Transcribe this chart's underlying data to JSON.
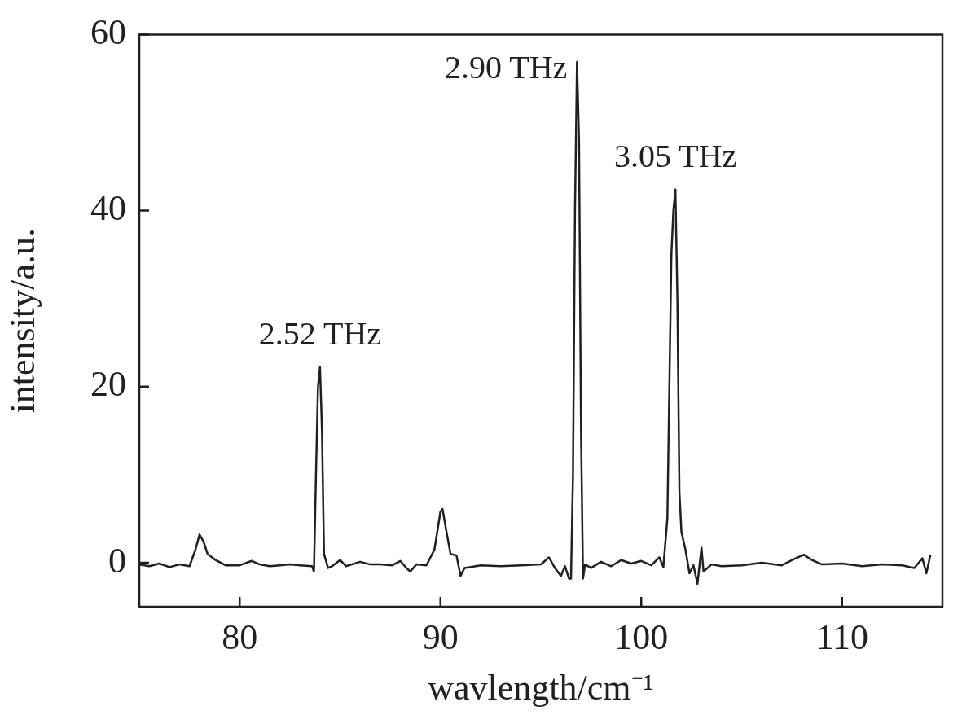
{
  "chart_data": {
    "type": "line",
    "xlabel": "wavlength/cm⁻¹",
    "ylabel": "intensity/a.u.",
    "xlim": [
      75,
      115
    ],
    "xticks": [
      80,
      90,
      100,
      110
    ],
    "ylim": [
      -5,
      60
    ],
    "yticks": [
      0,
      20,
      40,
      60
    ],
    "grid": false,
    "legend": false,
    "marker": "none",
    "line_style": "solid",
    "annotations": [
      {
        "text": "2.52 THz",
        "x": 84.0,
        "y": 22.2
      },
      {
        "text": "2.90 THz",
        "x": 96.8,
        "y": 56.9
      },
      {
        "text": "3.05 THz",
        "x": 101.7,
        "y": 42.4
      }
    ],
    "series": [
      {
        "color": "#231f20",
        "x": [
          75,
          75.5,
          76,
          76.5,
          77,
          77.5,
          77.8,
          78.0,
          78.2,
          78.4,
          78.8,
          79.3,
          80,
          80.6,
          81,
          81.5,
          82,
          82.5,
          83,
          83.6,
          83.7,
          83.8,
          83.9,
          84.0,
          84.1,
          84.2,
          84.4,
          84.6,
          85,
          85.3,
          86,
          86.5,
          87,
          87.6,
          88,
          88.3,
          88.5,
          88.8,
          89.3,
          89.7,
          90.0,
          90.1,
          90.3,
          90.5,
          90.8,
          91.0,
          91.2,
          92,
          93,
          94,
          95,
          95.4,
          95.7,
          96,
          96.2,
          96.4,
          96.5,
          96.6,
          96.7,
          96.8,
          96.9,
          97.0,
          97.1,
          97.2,
          97.5,
          98,
          98.5,
          99,
          99.5,
          100,
          100.5,
          100.9,
          101.1,
          101.3,
          101.5,
          101.6,
          101.7,
          101.8,
          101.9,
          102.0,
          102.2,
          102.4,
          102.6,
          102.8,
          103.0,
          103.1,
          103.5,
          104,
          105,
          106,
          107,
          107.6,
          108.1,
          108.5,
          109,
          110,
          111,
          112,
          113,
          113.6,
          114.0,
          114.2,
          114.4
        ],
        "values": [
          -0.2,
          -0.4,
          -0.1,
          -0.5,
          -0.2,
          -0.4,
          1.5,
          3.2,
          2.4,
          1.0,
          0.3,
          -0.3,
          -0.3,
          0.2,
          -0.2,
          -0.4,
          -0.3,
          -0.2,
          -0.3,
          -0.4,
          -1.0,
          10,
          20.0,
          22.2,
          15,
          1,
          -0.6,
          -0.4,
          0.3,
          -0.4,
          0.1,
          -0.2,
          -0.2,
          -0.3,
          0.2,
          -0.6,
          -1.0,
          -0.2,
          -0.3,
          1.5,
          5.8,
          6.1,
          3.5,
          1,
          0.8,
          -1.5,
          -0.6,
          -0.3,
          -0.4,
          -0.3,
          -0.2,
          0.6,
          -0.6,
          -1.5,
          -0.4,
          -1.8,
          -1.8,
          10,
          40,
          56.9,
          48,
          15,
          -1.8,
          -0.2,
          -0.6,
          0.1,
          -0.4,
          0.3,
          -0.1,
          0.2,
          -0.3,
          0.6,
          -0.5,
          5,
          35,
          40,
          42.4,
          30,
          8,
          3.5,
          1.5,
          -1.2,
          -0.3,
          -2.4,
          1.7,
          -1.0,
          -0.2,
          -0.4,
          -0.3,
          0.0,
          -0.3,
          0.4,
          0.9,
          0.3,
          -0.2,
          -0.1,
          -0.4,
          -0.2,
          -0.3,
          -0.6,
          0.5,
          -1.2,
          0.9
        ]
      }
    ]
  }
}
